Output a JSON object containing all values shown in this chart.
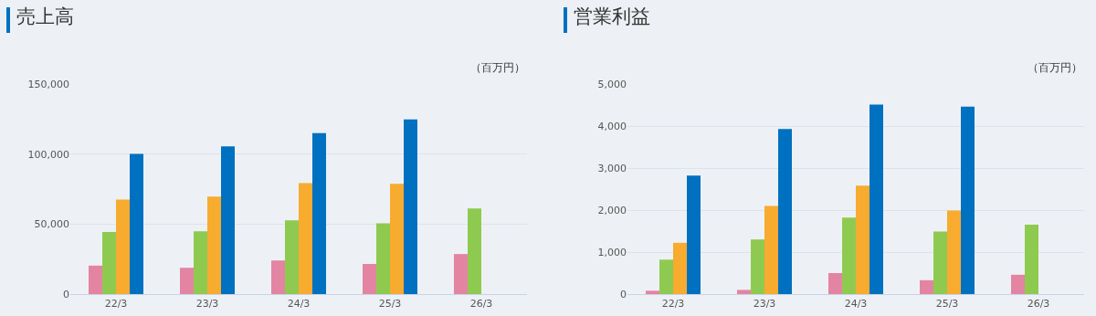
{
  "chart_data": [
    {
      "type": "bar",
      "title": "売上高",
      "annotations": [
        "（百万円）"
      ],
      "categories": [
        "22/3",
        "23/3",
        "24/3",
        "25/3",
        "26/3"
      ],
      "series": [
        {
          "color": "#e384a2",
          "values": [
            20300,
            18800,
            24000,
            21500,
            28600
          ]
        },
        {
          "color": "#8fca50",
          "values": [
            44300,
            44800,
            52600,
            50600,
            61200
          ]
        },
        {
          "color": "#f7ab2f",
          "values": [
            67500,
            69700,
            79300,
            78800,
            null
          ]
        },
        {
          "color": "#0071c1",
          "values": [
            100100,
            105500,
            115000,
            124800,
            null
          ]
        }
      ],
      "ylim": [
        0,
        150000
      ],
      "yticks": [
        {
          "value": 0,
          "label": "0"
        },
        {
          "value": 50000,
          "label": "50,000"
        },
        {
          "value": 100000,
          "label": "100,000"
        },
        {
          "value": 150000,
          "label": "150,000"
        }
      ],
      "grid": "y"
    },
    {
      "type": "bar",
      "title": "営業利益",
      "annotations": [
        "（百万円）"
      ],
      "categories": [
        "22/3",
        "23/3",
        "24/3",
        "25/3",
        "26/3"
      ],
      "series": [
        {
          "color": "#e384a2",
          "values": [
            80,
            100,
            500,
            330,
            460
          ]
        },
        {
          "color": "#8fca50",
          "values": [
            820,
            1300,
            1820,
            1490,
            1650
          ]
        },
        {
          "color": "#f7ab2f",
          "values": [
            1220,
            2100,
            2580,
            1990,
            null
          ]
        },
        {
          "color": "#0071c1",
          "values": [
            2820,
            3930,
            4510,
            4460,
            null
          ]
        }
      ],
      "ylim": [
        0,
        5000
      ],
      "yticks": [
        {
          "value": 0,
          "label": "0"
        },
        {
          "value": 1000,
          "label": "1,000"
        },
        {
          "value": 2000,
          "label": "2,000"
        },
        {
          "value": 3000,
          "label": "3,000"
        },
        {
          "value": 4000,
          "label": "4,000"
        },
        {
          "value": 5000,
          "label": "5,000"
        }
      ],
      "grid": "y"
    }
  ]
}
